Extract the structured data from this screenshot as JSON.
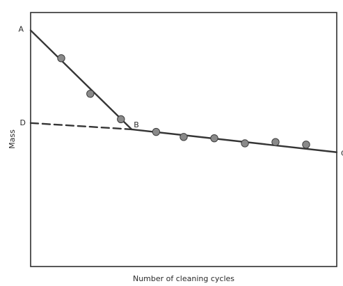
{
  "chart_data": {
    "type": "scatter",
    "title": "",
    "xlabel": "Number of cleaning cycles",
    "ylabel": "Mass",
    "xlim": [
      0,
      10
    ],
    "ylim": [
      0,
      10
    ],
    "ticks": false,
    "grid": false,
    "points": [
      {
        "x": 1.0,
        "y": 8.2
      },
      {
        "x": 1.95,
        "y": 6.8
      },
      {
        "x": 2.95,
        "y": 5.8
      },
      {
        "x": 4.1,
        "y": 5.3
      },
      {
        "x": 5.0,
        "y": 5.1
      },
      {
        "x": 6.0,
        "y": 5.05
      },
      {
        "x": 7.0,
        "y": 4.85
      },
      {
        "x": 8.0,
        "y": 4.9
      },
      {
        "x": 9.0,
        "y": 4.8
      }
    ],
    "lines": [
      {
        "style": "solid",
        "from": [
          0.0,
          9.3
        ],
        "to": [
          3.3,
          5.4
        ]
      },
      {
        "style": "dashed",
        "from": [
          0.0,
          5.65
        ],
        "to": [
          3.3,
          5.4
        ]
      },
      {
        "style": "solid",
        "from": [
          3.3,
          5.4
        ],
        "to": [
          10.0,
          4.5
        ]
      }
    ],
    "annotations": [
      {
        "text": "A",
        "x": 0.0,
        "y": 9.3
      },
      {
        "text": "B",
        "x": 3.3,
        "y": 5.4
      },
      {
        "text": "D",
        "x": 0.0,
        "y": 5.65
      },
      {
        "text": "C",
        "x": 10.0,
        "y": 4.5
      }
    ]
  }
}
